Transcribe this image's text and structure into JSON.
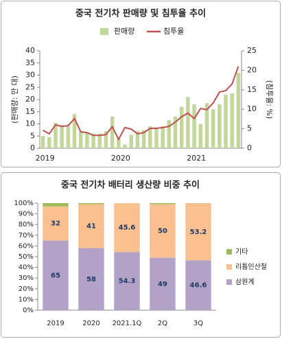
{
  "chart_data": [
    {
      "type": "combo",
      "title": "중국 전기차 판매량 및 침투율 추이",
      "y_label": "(판매량: 만 대)",
      "y2_label": "(침투율: %)",
      "categories": [
        "2019",
        null,
        null,
        null,
        null,
        null,
        null,
        null,
        null,
        null,
        null,
        null,
        "2020",
        null,
        null,
        null,
        null,
        null,
        null,
        null,
        null,
        null,
        null,
        null,
        "2021",
        null,
        null,
        null,
        null,
        null,
        null,
        null
      ],
      "series": [
        {
          "name": "판매량",
          "type": "bar",
          "color": "#c4d79b",
          "values": [
            5,
            4.5,
            10.5,
            9.5,
            9.5,
            14,
            7,
            6.5,
            6,
            6,
            7,
            13,
            4,
            1.5,
            5.5,
            7,
            7.5,
            9,
            8.5,
            9,
            11.5,
            13,
            17,
            21,
            18,
            10,
            18.5,
            16,
            18,
            22,
            22.5,
            31
          ]
        },
        {
          "name": "침투율",
          "type": "line",
          "color": "#c0504d",
          "axis": "y2",
          "values": [
            4.6,
            3.7,
            6,
            5.6,
            5.8,
            7.6,
            4.2,
            4,
            3.3,
            3.3,
            3.5,
            5.5,
            2.3,
            5.3,
            4.9,
            3.7,
            4,
            5.1,
            5.1,
            5.3,
            5.6,
            6.7,
            8.1,
            9,
            7.6,
            10.2,
            9.9,
            11.6,
            14.4,
            14.8,
            16.5,
            21
          ]
        }
      ],
      "ylim": [
        0,
        40
      ],
      "yticks": [
        0,
        5,
        10,
        15,
        20,
        25,
        30,
        35,
        40
      ],
      "y2lim": [
        0,
        25
      ],
      "y2ticks": [
        0,
        5,
        10,
        15,
        20,
        25
      ],
      "legend": "top"
    },
    {
      "type": "stacked_bar",
      "title": "중국 전기차 배터리 생산량 비중 추이",
      "categories": [
        "2019",
        "2020",
        "2021.1Q",
        "2Q",
        "3Q"
      ],
      "series": [
        {
          "name": "삼원계",
          "color": "#b3a2c7",
          "values": [
            65,
            58,
            54.3,
            49,
            46.6
          ]
        },
        {
          "name": "리튬인산철",
          "color": "#fac090",
          "values": [
            32,
            41,
            45.6,
            50,
            53.2
          ]
        },
        {
          "name": "기타",
          "color": "#9bbb59",
          "values": [
            3,
            1,
            0.1,
            1,
            0.2
          ]
        }
      ],
      "ylim": [
        0,
        100
      ],
      "yticks": [
        {
          "value": 0,
          "label": "0%"
        },
        {
          "value": 10,
          "label": "10%"
        },
        {
          "value": 20,
          "label": "20%"
        },
        {
          "value": 30,
          "label": "30%"
        },
        {
          "value": 40,
          "label": "40%"
        },
        {
          "value": 50,
          "label": "50%"
        },
        {
          "value": 60,
          "label": "60%"
        },
        {
          "value": 70,
          "label": "70%"
        },
        {
          "value": 80,
          "label": "80%"
        },
        {
          "value": 90,
          "label": "90%"
        },
        {
          "value": 100,
          "label": "100%"
        }
      ],
      "legend": "right"
    }
  ]
}
